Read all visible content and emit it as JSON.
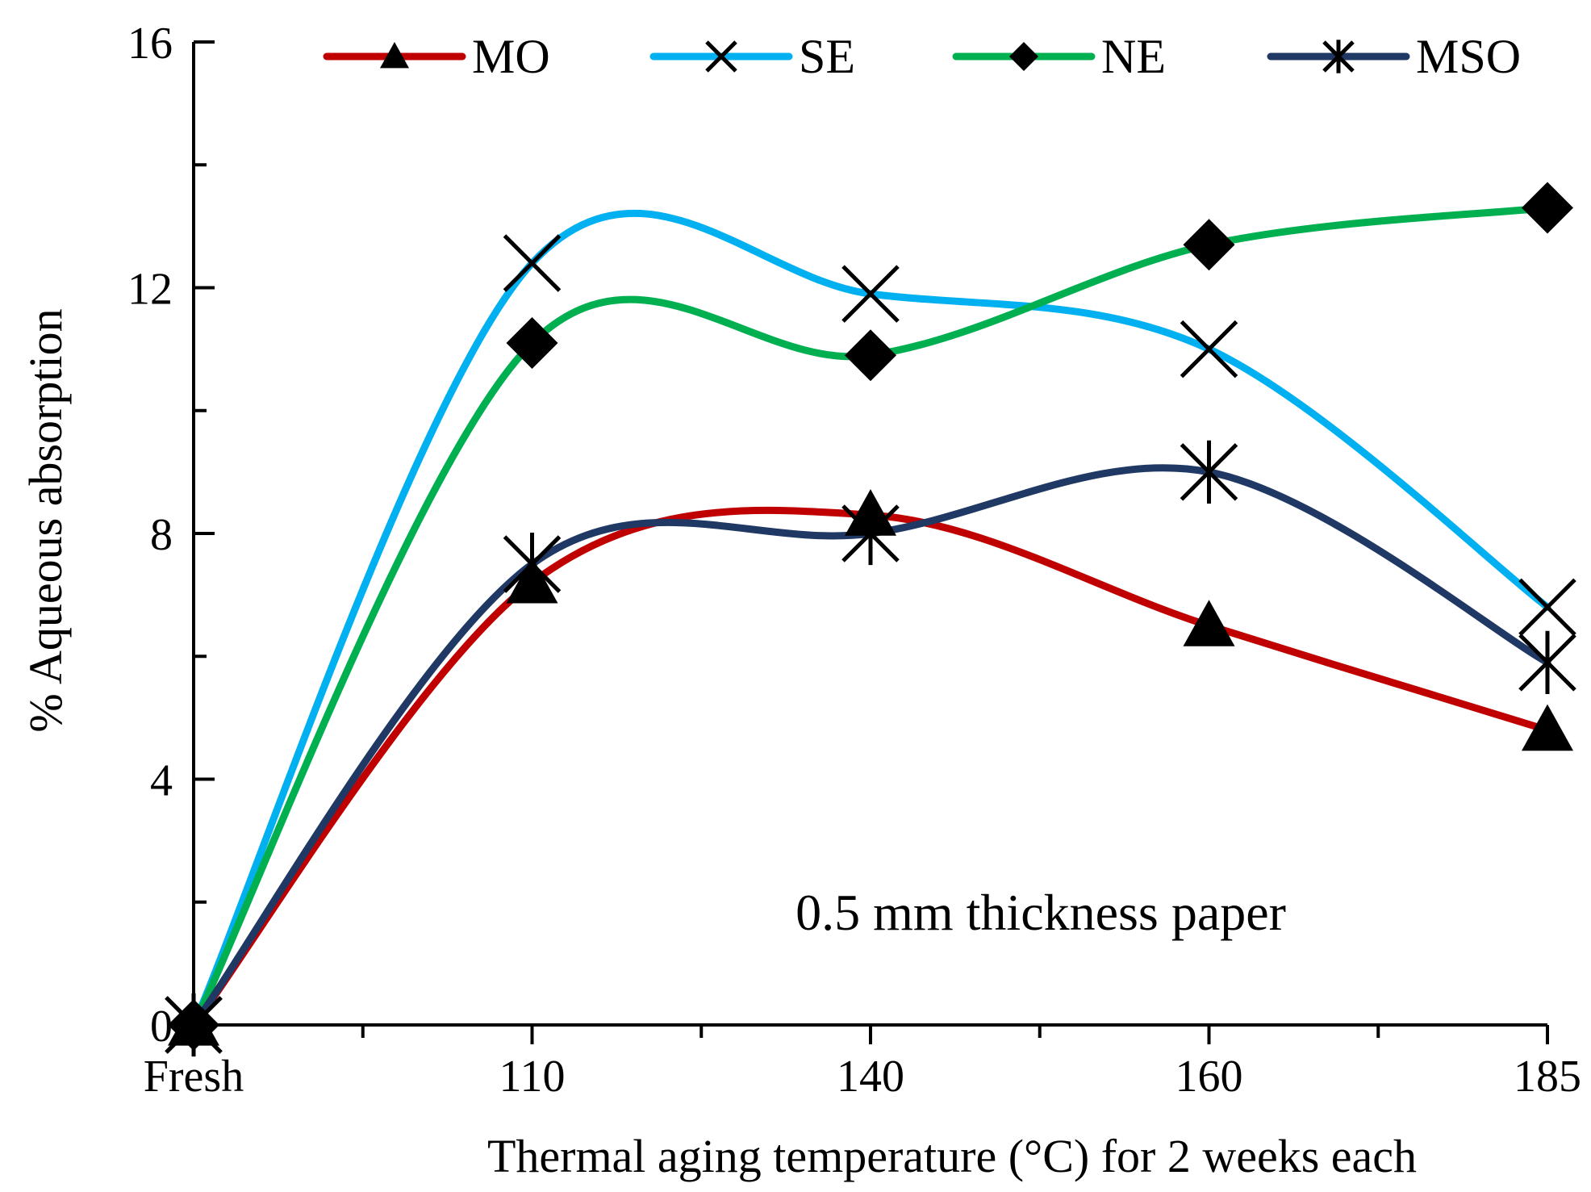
{
  "chart_data": {
    "type": "line",
    "title": "",
    "xlabel": "Thermal aging temperature (°C) for 2 weeks each",
    "ylabel": "% Aqueous absorption",
    "categories": [
      "Fresh",
      "110",
      "140",
      "160",
      "185"
    ],
    "ylim": [
      0,
      16
    ],
    "yticks": [
      0,
      4,
      8,
      12,
      16
    ],
    "grid": false,
    "legend_position": "top",
    "annotation": "0.5 mm thickness paper",
    "series": [
      {
        "name": "MO",
        "color": "#c00000",
        "marker": "triangle",
        "values": [
          0,
          7.2,
          8.3,
          6.5,
          4.8
        ]
      },
      {
        "name": "SE",
        "color": "#00b0f0",
        "marker": "x",
        "values": [
          0,
          12.4,
          11.9,
          11.0,
          6.8
        ]
      },
      {
        "name": "NE",
        "color": "#00b050",
        "marker": "diamond",
        "values": [
          0,
          11.1,
          10.9,
          12.7,
          13.3
        ]
      },
      {
        "name": "MSO",
        "color": "#1f3864",
        "marker": "asterisk",
        "values": [
          0,
          7.5,
          8.0,
          9.0,
          5.9
        ]
      }
    ]
  }
}
